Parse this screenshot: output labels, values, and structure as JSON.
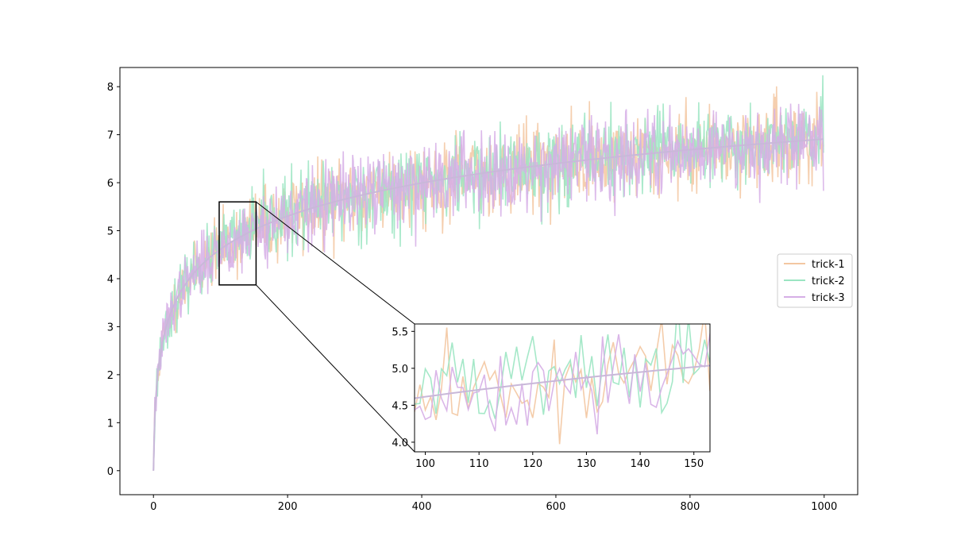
{
  "chart_data": [
    {
      "type": "line",
      "role": "main",
      "xlim": [
        -50,
        1050
      ],
      "ylim": [
        -0.5,
        8.4
      ],
      "xticks": [
        0,
        200,
        400,
        600,
        800,
        1000
      ],
      "yticks": [
        0,
        1,
        2,
        3,
        4,
        5,
        6,
        7,
        8
      ],
      "xtick_labels": [
        "0",
        "200",
        "400",
        "600",
        "800",
        "1000"
      ],
      "ytick_labels": [
        "0",
        "1",
        "2",
        "3",
        "4",
        "5",
        "6",
        "7",
        "8"
      ],
      "grid": false,
      "legend_position": "right",
      "trend": {
        "description": "noisy curves following a log-shaped mean",
        "formula": "log(x+1)"
      },
      "x": {
        "start": 0,
        "end": 999,
        "step": 1
      },
      "series": [
        {
          "name": "trick-1",
          "color": "#f3c7a1",
          "noise_sd": 0.42,
          "seed": 11
        },
        {
          "name": "trick-2",
          "color": "#9be5c2",
          "noise_sd": 0.42,
          "seed": 23
        },
        {
          "name": "trick-3",
          "color": "#d6aee6",
          "noise_sd": 0.42,
          "seed": 37
        }
      ],
      "mean_line_color": "#c9b8d9",
      "zoom_region": {
        "x": [
          98,
          153
        ],
        "y": [
          3.87,
          5.6
        ]
      }
    },
    {
      "type": "line",
      "role": "inset",
      "xlim": [
        98,
        153
      ],
      "ylim": [
        3.87,
        5.6
      ],
      "xticks": [
        100,
        110,
        120,
        130,
        140,
        150
      ],
      "yticks": [
        4.0,
        4.5,
        5.0,
        5.5
      ],
      "xtick_labels": [
        "100",
        "110",
        "120",
        "130",
        "140",
        "150"
      ],
      "ytick_labels": [
        "4.0",
        "4.5",
        "5.0",
        "5.5"
      ],
      "grid": false
    }
  ]
}
